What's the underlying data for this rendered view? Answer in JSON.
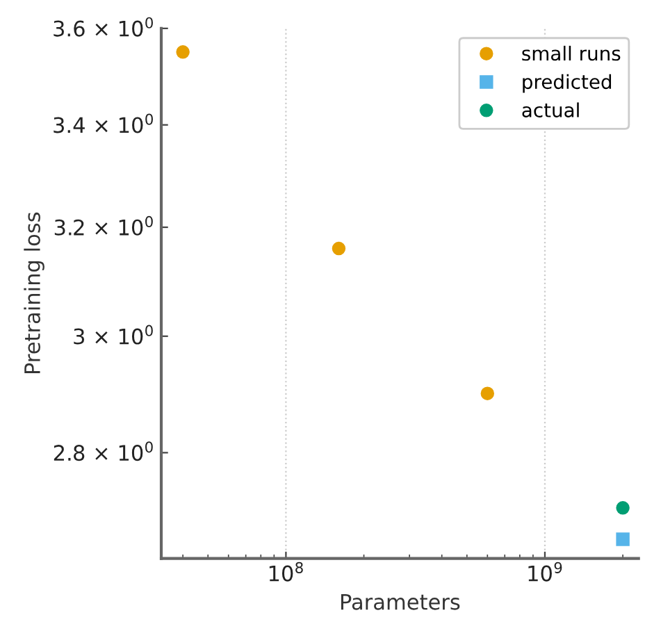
{
  "chart_data": {
    "type": "scatter",
    "xlabel": "Parameters",
    "ylabel": "Pretraining loss",
    "log": "xy",
    "series": [
      {
        "name": "small runs",
        "color": "#e69f00",
        "marker": "circle",
        "x": [
          40000000.0,
          160000000.0,
          600000000.0
        ],
        "values": [
          3.55,
          3.16,
          2.9
        ]
      },
      {
        "name": "predicted",
        "color": "#56b4e9",
        "marker": "square",
        "x": [
          2000000000.0
        ],
        "values": [
          2.66
        ]
      },
      {
        "name": "actual",
        "color": "#009e73",
        "marker": "circle",
        "x": [
          2000000000.0
        ],
        "values": [
          2.71
        ]
      }
    ],
    "xlim": [
      33000000.0,
      2300000000.0
    ],
    "ylim": [
      2.63,
      3.6
    ],
    "xticks": [
      {
        "value": 100000000,
        "label": "10$^{8}$"
      },
      {
        "value": 1000000000,
        "label": "10$^{9}$"
      }
    ],
    "yticks": [
      {
        "value": 2.8,
        "label": "2.8 × 10$^{0}$"
      },
      {
        "value": 3,
        "label": "3 × 10$^{0}$"
      },
      {
        "value": 3.2,
        "label": "3.2 × 10$^{0}$"
      },
      {
        "value": 3.4,
        "label": "3.4 × 10$^{0}$"
      },
      {
        "value": 3.6,
        "label": "3.6 × 10$^{0}$"
      }
    ],
    "grid": "x",
    "legend": "top right"
  }
}
